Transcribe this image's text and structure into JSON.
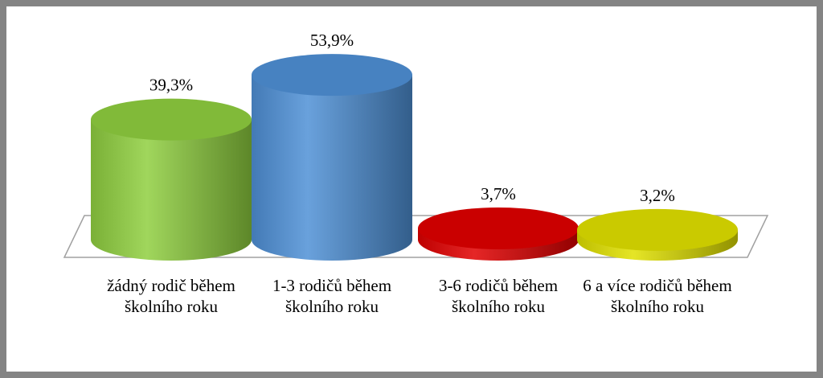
{
  "chart_data": {
    "type": "cylinder",
    "categories": [
      "žádný rodič během školního roku",
      "1-3 rodičů během školního roku",
      "3-6 rodičů během školního roku",
      "6 a více rodičů během školního roku"
    ],
    "values": [
      39.3,
      53.9,
      3.7,
      3.2
    ],
    "value_labels": [
      "39,3%",
      "53,9%",
      "3,7%",
      "3,2%"
    ],
    "colors": [
      "#8fcf3f",
      "#4f90d6",
      "#e00000",
      "#e0e000"
    ]
  }
}
